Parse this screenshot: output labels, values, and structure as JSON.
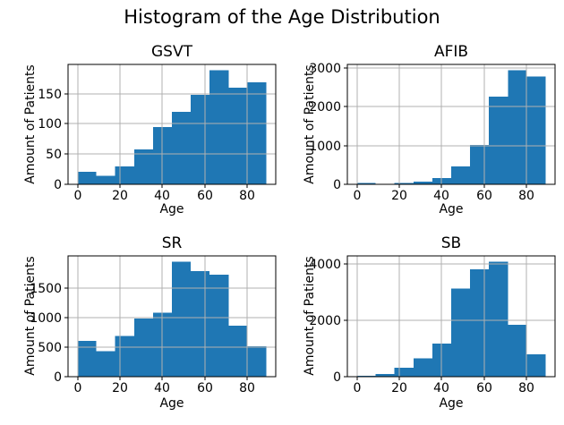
{
  "figure": {
    "suptitle": "Histogram of the Age Distribution"
  },
  "chart_data": [
    {
      "type": "histogram",
      "title": "GSVT",
      "xlabel": "Age",
      "ylabel": "Amount of Patients",
      "bin_start": 0,
      "bin_width": 8.9,
      "counts": [
        21,
        14,
        30,
        58,
        95,
        120,
        148,
        189,
        160,
        169
      ],
      "xticks": [
        0,
        20,
        40,
        60,
        80
      ],
      "yticks": [
        0,
        50,
        100,
        150
      ],
      "xlim": [
        -4.45,
        93.45
      ],
      "ylim": [
        0,
        198.5
      ],
      "grid": true,
      "legend": "none",
      "bar_color": "#1f77b4",
      "grid_color": "#b0b0b0"
    },
    {
      "type": "histogram",
      "title": "AFIB",
      "xlabel": "Age",
      "ylabel": "Amount of Patients",
      "bin_start": 0,
      "bin_width": 8.9,
      "counts": [
        40,
        10,
        30,
        70,
        160,
        460,
        1020,
        2270,
        2950,
        2790
      ],
      "xticks": [
        0,
        20,
        40,
        60,
        80
      ],
      "yticks": [
        0,
        1000,
        2000,
        3000
      ],
      "xlim": [
        -4.45,
        93.45
      ],
      "ylim": [
        0,
        3098
      ],
      "grid": true,
      "legend": "none",
      "bar_color": "#1f77b4",
      "grid_color": "#b0b0b0"
    },
    {
      "type": "histogram",
      "title": "SR",
      "xlabel": "Age",
      "ylabel": "Amount of Patients",
      "bin_start": 0,
      "bin_width": 8.9,
      "counts": [
        600,
        430,
        690,
        980,
        1080,
        1940,
        1780,
        1720,
        860,
        510
      ],
      "xticks": [
        0,
        20,
        40,
        60,
        80
      ],
      "yticks": [
        0,
        500,
        1000,
        1500
      ],
      "xlim": [
        -4.45,
        93.45
      ],
      "ylim": [
        0,
        2037
      ],
      "grid": true,
      "legend": "none",
      "bar_color": "#1f77b4",
      "grid_color": "#b0b0b0"
    },
    {
      "type": "histogram",
      "title": "SB",
      "xlabel": "Age",
      "ylabel": "Amount of Patients",
      "bin_start": 0,
      "bin_width": 8.9,
      "counts": [
        30,
        90,
        310,
        650,
        1180,
        3130,
        3810,
        4080,
        1840,
        800
      ],
      "xticks": [
        0,
        20,
        40,
        60,
        80
      ],
      "yticks": [
        0,
        2000,
        4000
      ],
      "xlim": [
        -4.45,
        93.45
      ],
      "ylim": [
        0,
        4284
      ],
      "grid": true,
      "legend": "none",
      "bar_color": "#1f77b4",
      "grid_color": "#b0b0b0"
    }
  ]
}
